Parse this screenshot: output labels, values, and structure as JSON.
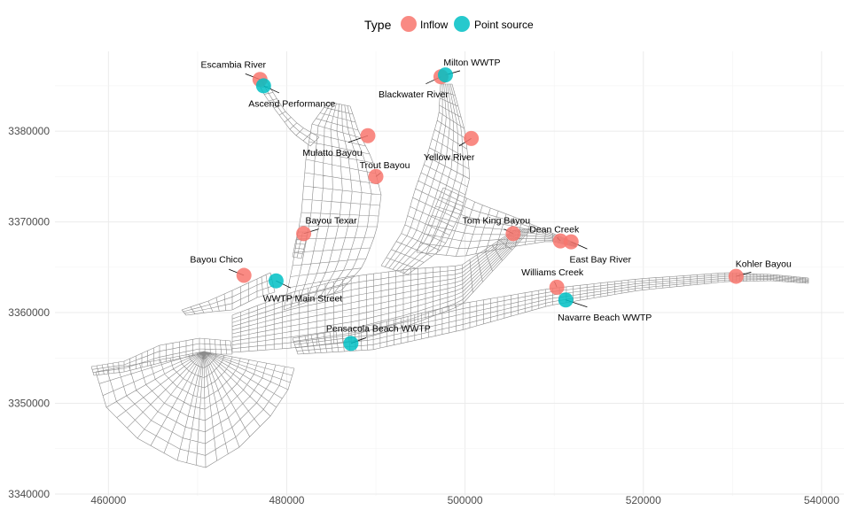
{
  "chart_data": {
    "type": "scatter",
    "legend": {
      "title": "Type",
      "position": "top",
      "entries": [
        {
          "name": "Inflow",
          "color": "#F8766D"
        },
        {
          "name": "Point source",
          "color": "#00BFC4"
        }
      ]
    },
    "xlim": [
      454000,
      542500
    ],
    "ylim": [
      3339800,
      3388800
    ],
    "x_ticks": [
      460000,
      480000,
      500000,
      520000,
      540000
    ],
    "y_ticks": [
      3340000,
      3350000,
      3360000,
      3370000,
      3380000
    ],
    "x_tick_labels": [
      "460000",
      "480000",
      "500000",
      "520000",
      "540000"
    ],
    "y_tick_labels": [
      "3340000",
      "3350000",
      "3360000",
      "3370000",
      "3380000"
    ],
    "grid": true,
    "background": "mesh",
    "points": [
      {
        "name": "Escambia River",
        "type": "Inflow",
        "x": 477000,
        "y": 3385700
      },
      {
        "name": "Ascend Performance",
        "type": "Point source",
        "x": 477400,
        "y": 3385000
      },
      {
        "name": "Blackwater River",
        "type": "Inflow",
        "x": 497300,
        "y": 3386000
      },
      {
        "name": "Milton WWTP",
        "type": "Point source",
        "x": 497800,
        "y": 3386200
      },
      {
        "name": "Mulatto Bayou",
        "type": "Inflow",
        "x": 489100,
        "y": 3379500
      },
      {
        "name": "Yellow River",
        "type": "Inflow",
        "x": 500700,
        "y": 3379200
      },
      {
        "name": "Trout Bayou",
        "type": "Inflow",
        "x": 490000,
        "y": 3375000
      },
      {
        "name": "Bayou Texar",
        "type": "Inflow",
        "x": 481900,
        "y": 3368700
      },
      {
        "name": "Tom King Bayou",
        "type": "Inflow",
        "x": 505400,
        "y": 3368700
      },
      {
        "name": "Dean Creek",
        "type": "Inflow",
        "x": 510700,
        "y": 3367900
      },
      {
        "name": "East Bay River",
        "type": "Inflow",
        "x": 511900,
        "y": 3367800
      },
      {
        "name": "Bayou Chico",
        "type": "Inflow",
        "x": 475200,
        "y": 3364100
      },
      {
        "name": "WWTP Main Street",
        "type": "Point source",
        "x": 478800,
        "y": 3363500
      },
      {
        "name": "Kohler Bayou",
        "type": "Inflow",
        "x": 530400,
        "y": 3364000
      },
      {
        "name": "Williams Creek",
        "type": "Inflow",
        "x": 510300,
        "y": 3362800
      },
      {
        "name": "Navarre Beach WWTP",
        "type": "Point source",
        "x": 511300,
        "y": 3361400
      },
      {
        "name": "Pensacola Beach WWTP",
        "type": "Point source",
        "x": 487200,
        "y": 3356600
      }
    ]
  }
}
